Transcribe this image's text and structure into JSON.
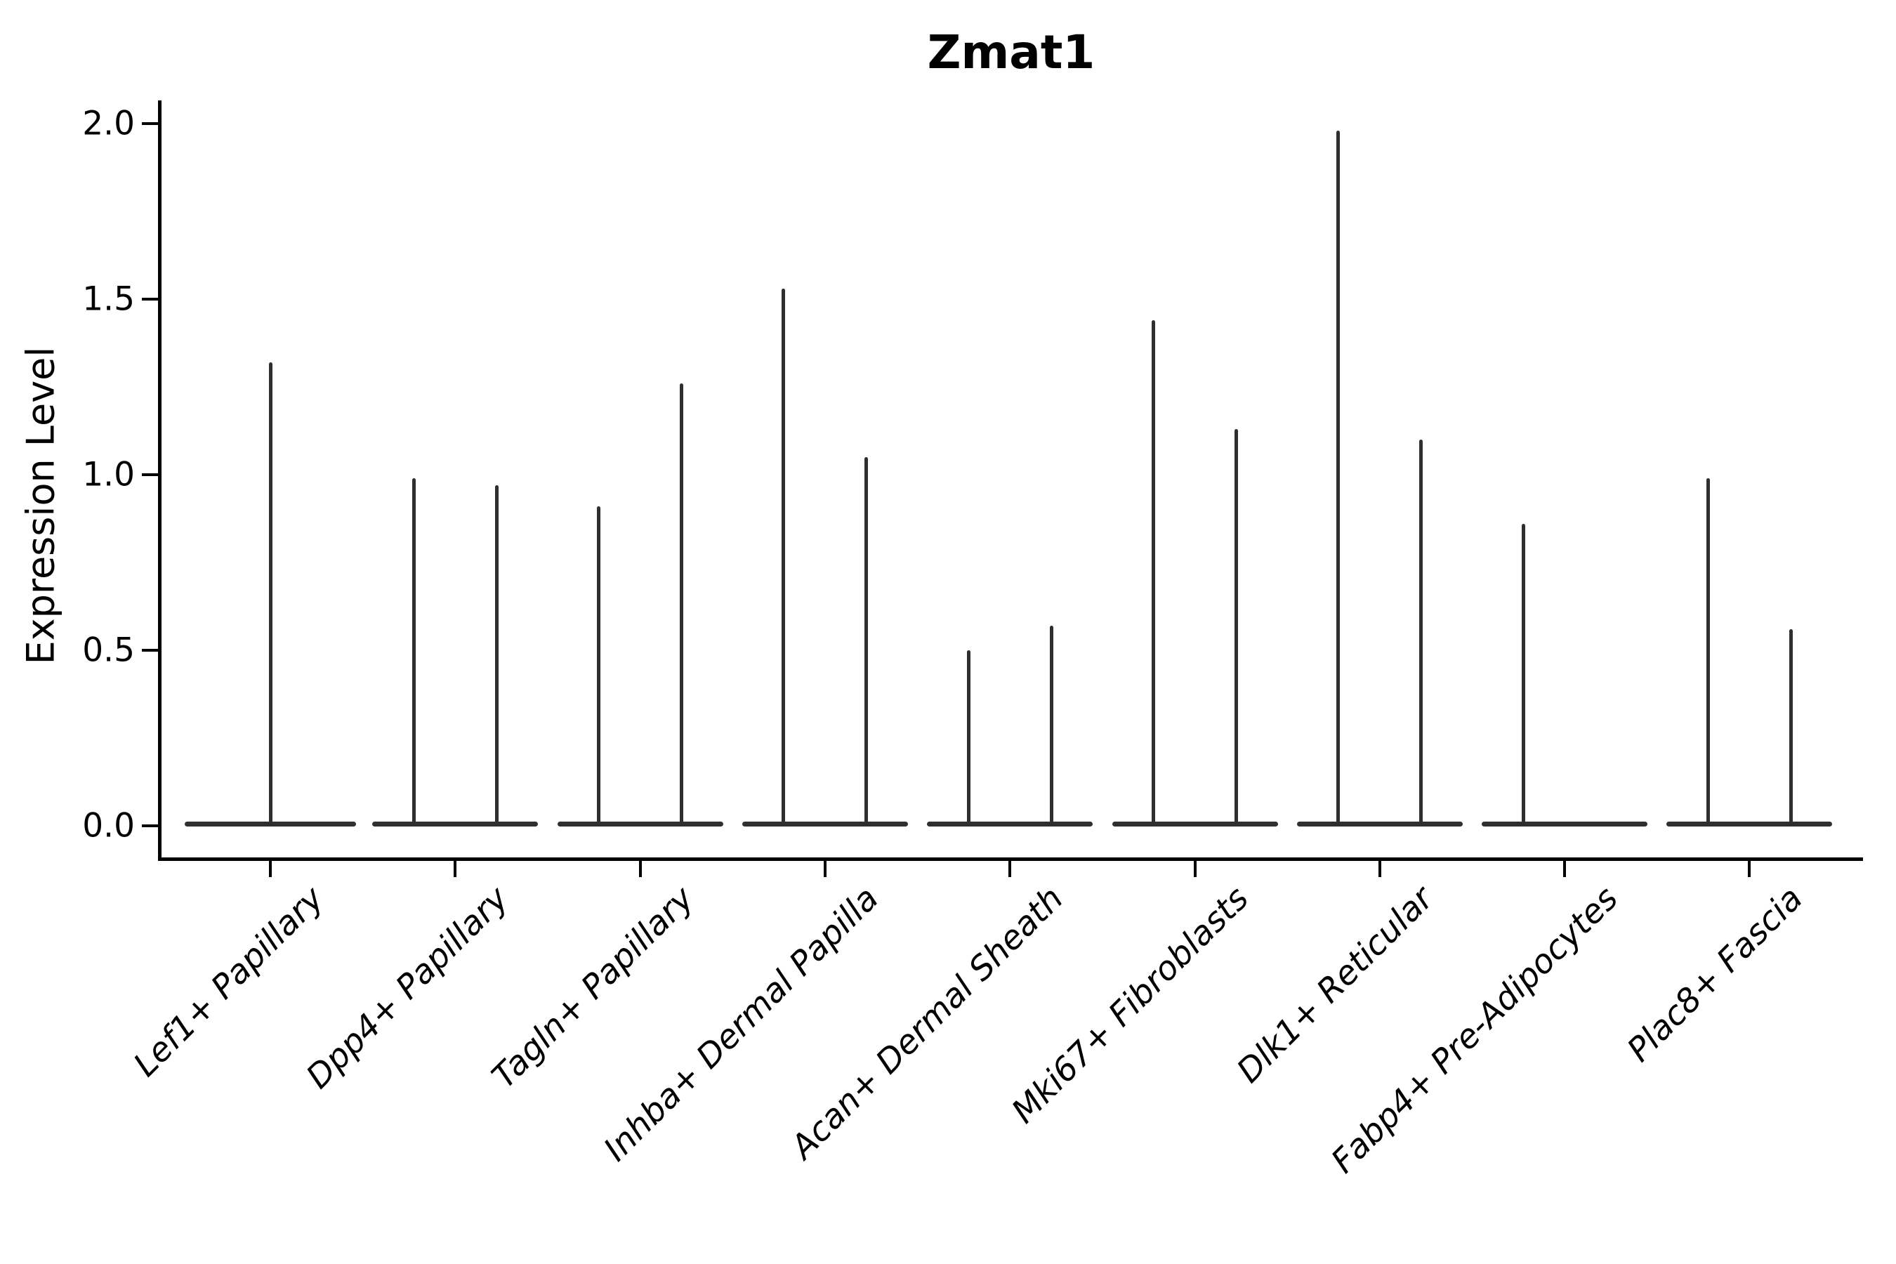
{
  "title": "Zmat1",
  "ylabel": "Expression Level",
  "chart_data": {
    "type": "violin",
    "title": "Zmat1",
    "xlabel": "",
    "ylabel": "Expression Level",
    "ylim": [
      0.0,
      2.0
    ],
    "yticks": [
      "0.0",
      "0.5",
      "1.0",
      "1.5",
      "2.0"
    ],
    "ytick_values": [
      0.0,
      0.5,
      1.0,
      1.5,
      2.0
    ],
    "grid": false,
    "legend": "none",
    "categories": [
      "Lef1+ Papillary",
      "Dpp4+ Papillary",
      "Tagln+ Papillary",
      "Inhba+ Dermal Papilla",
      "Acan+ Dermal Sheath",
      "Mki67+ Fibroblasts",
      "Dlk1+ Reticular",
      "Fabp4+ Pre-Adipocytes",
      "Plac8+ Fascia"
    ],
    "violins": [
      {
        "category": "Lef1+ Papillary",
        "tails": [
          {
            "pos": "center",
            "max": 1.32
          }
        ]
      },
      {
        "category": "Dpp4+ Papillary",
        "tails": [
          {
            "pos": "left",
            "max": 0.99
          },
          {
            "pos": "right",
            "max": 0.97
          }
        ]
      },
      {
        "category": "Tagln+ Papillary",
        "tails": [
          {
            "pos": "left",
            "max": 0.91
          },
          {
            "pos": "right",
            "max": 1.26
          }
        ]
      },
      {
        "category": "Inhba+ Dermal Papilla",
        "tails": [
          {
            "pos": "left",
            "max": 1.53
          },
          {
            "pos": "right",
            "max": 1.05
          }
        ]
      },
      {
        "category": "Acan+ Dermal Sheath",
        "tails": [
          {
            "pos": "left",
            "max": 0.5
          },
          {
            "pos": "right",
            "max": 0.57
          }
        ]
      },
      {
        "category": "Mki67+ Fibroblasts",
        "tails": [
          {
            "pos": "left",
            "max": 1.44
          },
          {
            "pos": "right",
            "max": 1.13
          }
        ]
      },
      {
        "category": "Dlk1+ Reticular",
        "tails": [
          {
            "pos": "left",
            "max": 1.98
          },
          {
            "pos": "right",
            "max": 1.1
          }
        ]
      },
      {
        "category": "Fabp4+ Pre-Adipocytes",
        "tails": [
          {
            "pos": "left",
            "max": 0.86
          },
          {
            "pos": "right",
            "max": 0.0
          }
        ]
      },
      {
        "category": "Plac8+ Fascia",
        "tails": [
          {
            "pos": "left",
            "max": 0.99
          },
          {
            "pos": "right",
            "max": 0.56
          }
        ]
      }
    ],
    "baseline_value": 0.0,
    "colors": {
      "violin": "#2f2f2f",
      "axis": "#000000",
      "background": "#ffffff"
    }
  }
}
